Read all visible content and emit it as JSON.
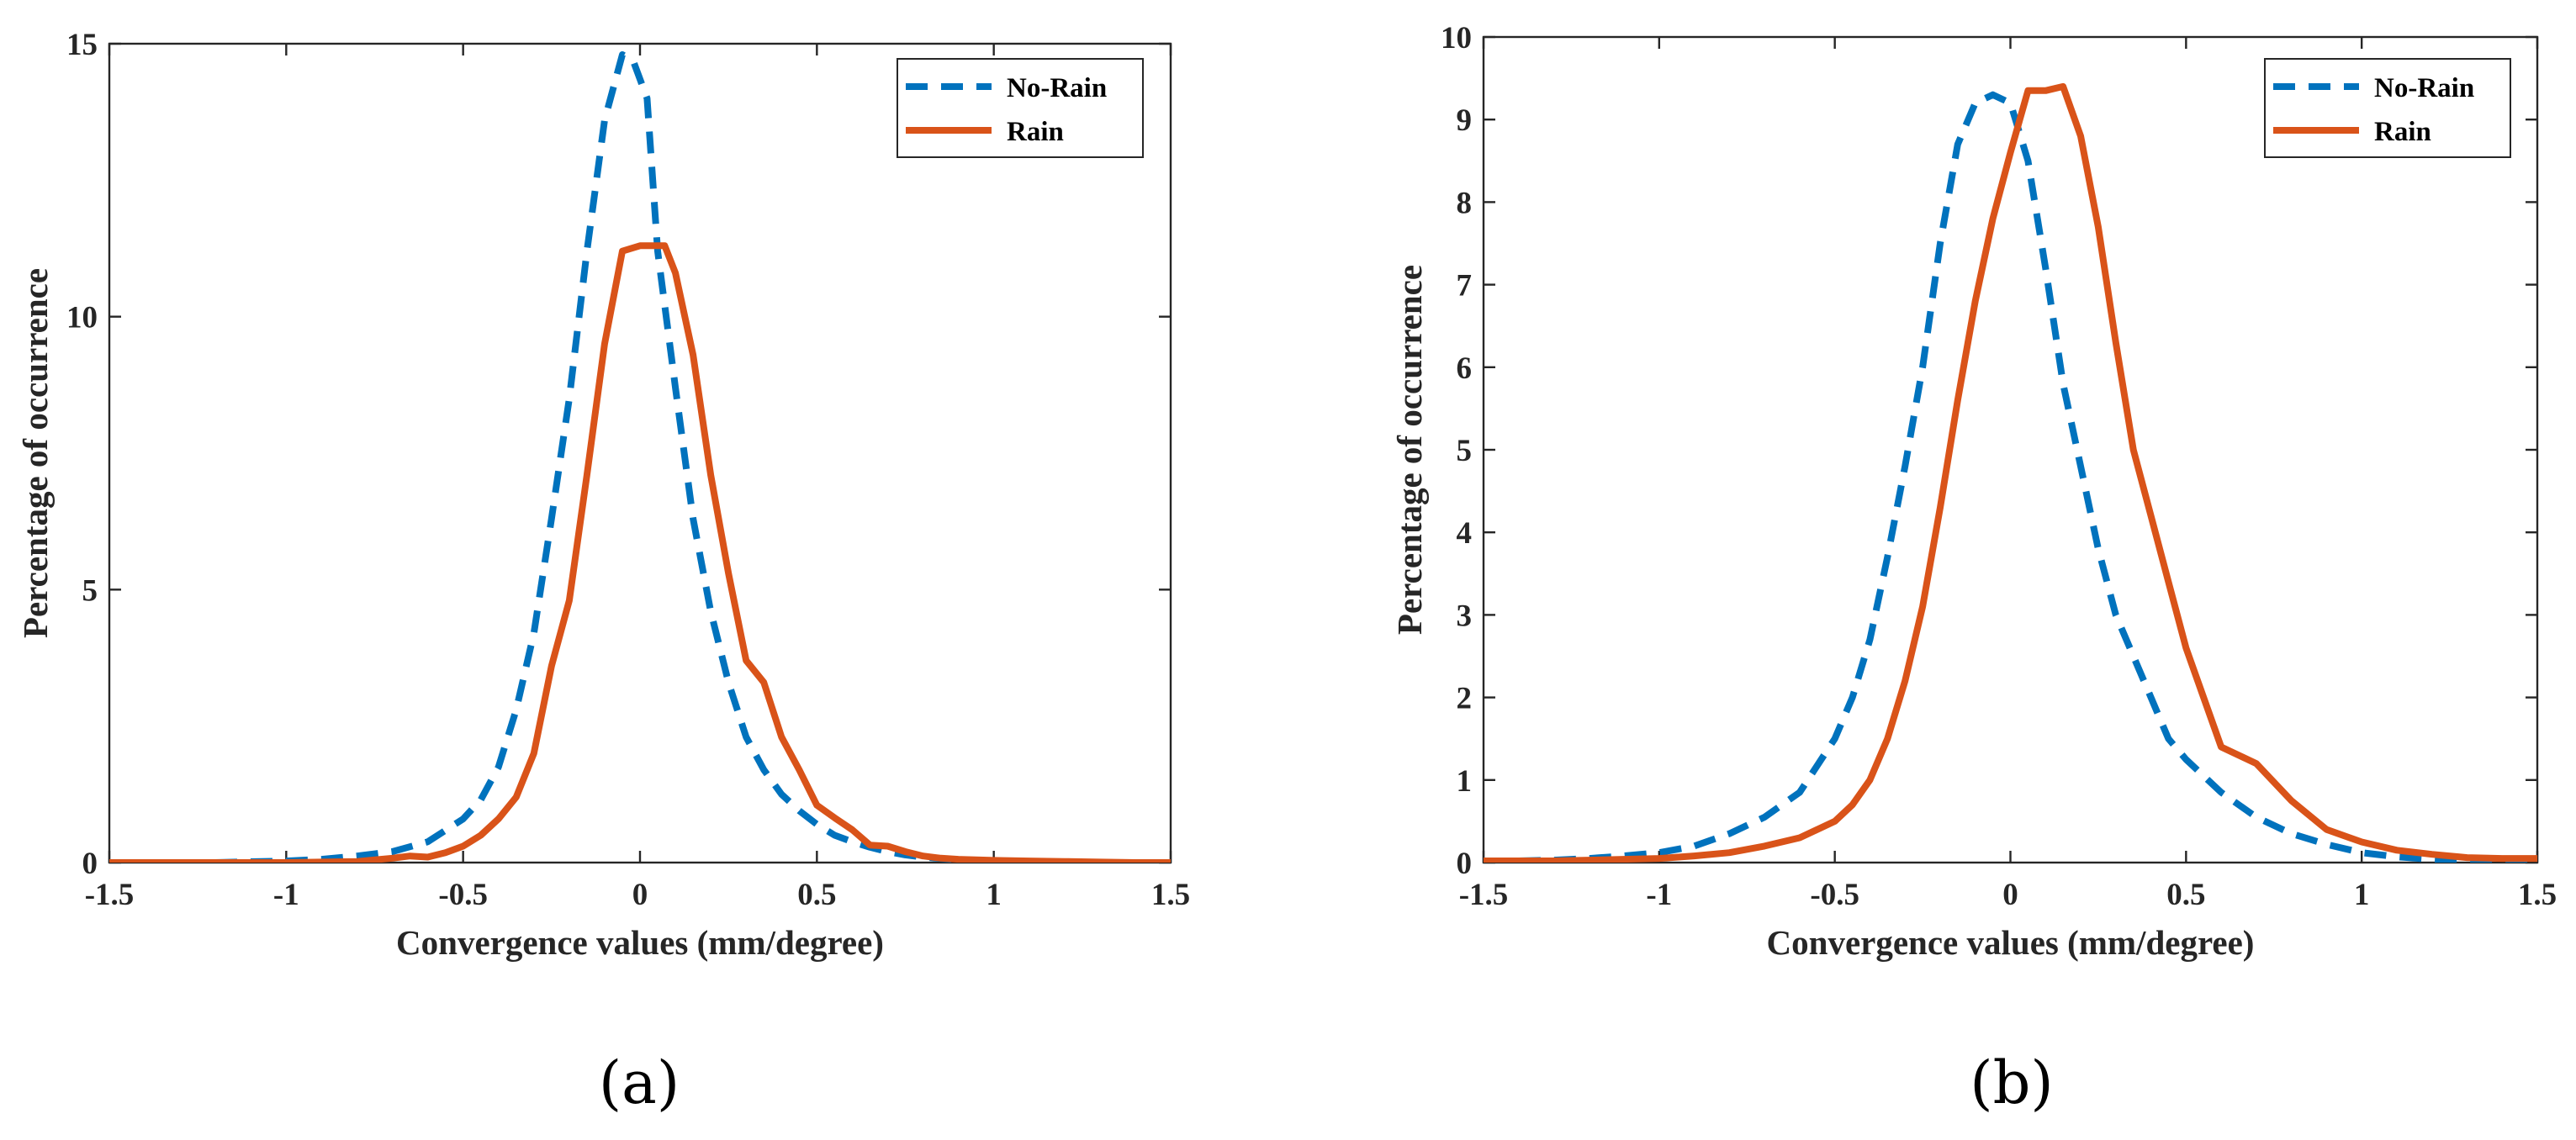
{
  "figure": {
    "panel_labels": [
      "(a)",
      "(b)"
    ]
  },
  "chart_data": [
    {
      "type": "line",
      "panel": "(a)",
      "title": "",
      "xlabel": "Convergence values (mm/degree)",
      "ylabel": "Percentage of occurrence",
      "xlim": [
        -1.5,
        1.5
      ],
      "ylim": [
        0,
        15
      ],
      "xticks": [
        -1.5,
        -1,
        -0.5,
        0,
        0.5,
        1,
        1.5
      ],
      "xtick_labels": [
        "-1.5",
        "-1",
        "-0.5",
        "0",
        "0.5",
        "1",
        "1.5"
      ],
      "yticks": [
        0,
        5,
        10,
        15
      ],
      "ytick_labels": [
        "0",
        "5",
        "10",
        "15"
      ],
      "legend_position": "top-right",
      "series": [
        {
          "name": "No-Rain",
          "color": "#0072BD",
          "style": "dashed",
          "x": [
            -1.5,
            -1.2,
            -1.0,
            -0.9,
            -0.8,
            -0.7,
            -0.6,
            -0.5,
            -0.45,
            -0.4,
            -0.35,
            -0.3,
            -0.25,
            -0.2,
            -0.15,
            -0.1,
            -0.05,
            -0.02,
            0.02,
            0.05,
            0.1,
            0.15,
            0.2,
            0.25,
            0.3,
            0.35,
            0.4,
            0.45,
            0.5,
            0.55,
            0.6,
            0.65,
            0.7,
            0.75,
            0.8,
            0.9,
            1.0,
            1.1,
            1.2,
            1.3,
            1.4,
            1.5
          ],
          "y": [
            0,
            0,
            0.03,
            0.06,
            0.12,
            0.2,
            0.38,
            0.8,
            1.15,
            1.75,
            2.8,
            4.2,
            6.3,
            8.5,
            11.2,
            13.6,
            14.8,
            14.7,
            14.0,
            11.2,
            8.7,
            6.3,
            4.6,
            3.3,
            2.3,
            1.7,
            1.25,
            0.95,
            0.7,
            0.5,
            0.38,
            0.28,
            0.2,
            0.14,
            0.1,
            0.05,
            0.03,
            0.02,
            0.01,
            0,
            0,
            0
          ]
        },
        {
          "name": "Rain",
          "color": "#D95319",
          "style": "solid",
          "x": [
            -1.5,
            -1.2,
            -1.0,
            -0.8,
            -0.7,
            -0.65,
            -0.6,
            -0.55,
            -0.5,
            -0.45,
            -0.4,
            -0.35,
            -0.3,
            -0.25,
            -0.2,
            -0.15,
            -0.1,
            -0.05,
            0.0,
            0.03,
            0.07,
            0.1,
            0.15,
            0.2,
            0.25,
            0.3,
            0.35,
            0.4,
            0.45,
            0.5,
            0.55,
            0.6,
            0.65,
            0.7,
            0.75,
            0.8,
            0.85,
            0.9,
            0.95,
            1.0,
            1.1,
            1.2,
            1.3,
            1.4,
            1.5
          ],
          "y": [
            0,
            0,
            0,
            0.02,
            0.08,
            0.12,
            0.1,
            0.18,
            0.3,
            0.5,
            0.8,
            1.2,
            2.0,
            3.6,
            4.8,
            7.1,
            9.5,
            11.2,
            11.3,
            11.3,
            11.3,
            10.8,
            9.3,
            7.1,
            5.3,
            3.7,
            3.3,
            2.3,
            1.7,
            1.05,
            0.82,
            0.6,
            0.32,
            0.3,
            0.2,
            0.12,
            0.08,
            0.06,
            0.05,
            0.04,
            0.03,
            0.02,
            0.01,
            0,
            0
          ]
        }
      ]
    },
    {
      "type": "line",
      "panel": "(b)",
      "title": "",
      "xlabel": "Convergence values (mm/degree)",
      "ylabel": "Percentage of occurrence",
      "xlim": [
        -1.5,
        1.5
      ],
      "ylim": [
        0,
        10
      ],
      "xticks": [
        -1.5,
        -1,
        -0.5,
        0,
        0.5,
        1,
        1.5
      ],
      "xtick_labels": [
        "-1.5",
        "-1",
        "-0.5",
        "0",
        "0.5",
        "1",
        "1.5"
      ],
      "yticks": [
        0,
        1,
        2,
        3,
        4,
        5,
        6,
        7,
        8,
        9,
        10
      ],
      "ytick_labels": [
        "0",
        "1",
        "2",
        "3",
        "4",
        "5",
        "6",
        "7",
        "8",
        "9",
        "10"
      ],
      "legend_position": "top-right",
      "series": [
        {
          "name": "No-Rain",
          "color": "#0072BD",
          "style": "dashed",
          "x": [
            -1.5,
            -1.4,
            -1.3,
            -1.2,
            -1.1,
            -1.0,
            -0.9,
            -0.8,
            -0.7,
            -0.6,
            -0.5,
            -0.45,
            -0.4,
            -0.35,
            -0.3,
            -0.25,
            -0.2,
            -0.15,
            -0.1,
            -0.05,
            0.0,
            0.05,
            0.1,
            0.15,
            0.2,
            0.25,
            0.3,
            0.35,
            0.4,
            0.45,
            0.5,
            0.6,
            0.7,
            0.8,
            0.9,
            1.0,
            1.1,
            1.2,
            1.3,
            1.4,
            1.5
          ],
          "y": [
            0.02,
            0.02,
            0.03,
            0.05,
            0.08,
            0.12,
            0.2,
            0.35,
            0.55,
            0.85,
            1.5,
            2.0,
            2.7,
            3.7,
            4.8,
            6.0,
            7.5,
            8.7,
            9.2,
            9.3,
            9.2,
            8.5,
            7.2,
            5.8,
            4.8,
            3.8,
            3.0,
            2.5,
            2.0,
            1.5,
            1.25,
            0.85,
            0.55,
            0.35,
            0.22,
            0.12,
            0.07,
            0.04,
            0.02,
            0.01,
            0
          ]
        },
        {
          "name": "Rain",
          "color": "#D95319",
          "style": "solid",
          "x": [
            -1.5,
            -1.4,
            -1.3,
            -1.2,
            -1.1,
            -1.0,
            -0.9,
            -0.8,
            -0.7,
            -0.6,
            -0.5,
            -0.45,
            -0.4,
            -0.35,
            -0.3,
            -0.25,
            -0.2,
            -0.15,
            -0.1,
            -0.05,
            0.0,
            0.05,
            0.1,
            0.15,
            0.2,
            0.25,
            0.3,
            0.35,
            0.4,
            0.45,
            0.5,
            0.55,
            0.6,
            0.7,
            0.8,
            0.9,
            1.0,
            1.1,
            1.2,
            1.3,
            1.4,
            1.5
          ],
          "y": [
            0.02,
            0.02,
            0.02,
            0.03,
            0.04,
            0.05,
            0.08,
            0.12,
            0.2,
            0.3,
            0.5,
            0.7,
            1.0,
            1.5,
            2.2,
            3.1,
            4.3,
            5.6,
            6.8,
            7.8,
            8.6,
            9.35,
            9.35,
            9.4,
            8.8,
            7.7,
            6.3,
            5.0,
            4.2,
            3.4,
            2.6,
            2.0,
            1.4,
            1.2,
            0.75,
            0.4,
            0.25,
            0.15,
            0.1,
            0.06,
            0.05,
            0.05
          ]
        }
      ]
    }
  ]
}
